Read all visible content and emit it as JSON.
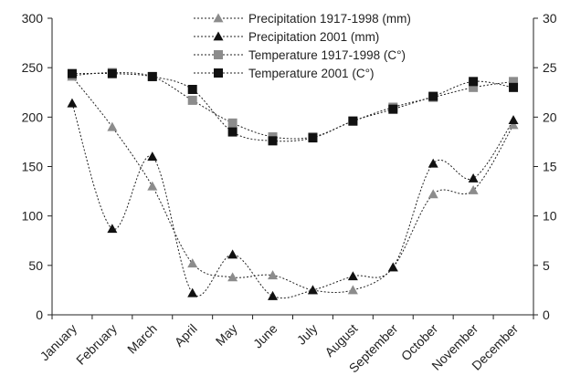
{
  "chart_data": {
    "type": "line",
    "categories": [
      "January",
      "February",
      "March",
      "April",
      "May",
      "June",
      "July",
      "August",
      "September",
      "October",
      "November",
      "December"
    ],
    "y_left": {
      "min": 0,
      "max": 300,
      "ticks": [
        "0",
        "50",
        "100",
        "150",
        "200",
        "250",
        "300"
      ]
    },
    "y_right": {
      "min": 0,
      "max": 30,
      "ticks": [
        "0",
        "5",
        "10",
        "15",
        "20",
        "25",
        "30"
      ]
    },
    "grid": false,
    "legend_position": "top-center",
    "series": [
      {
        "name": "Precipitation 1917-1998 (mm)",
        "axis": "left",
        "marker": "triangle",
        "color": "#8c8c8c",
        "values": [
          241,
          190,
          130,
          52,
          38,
          40,
          25,
          25,
          48,
          122,
          126,
          192
        ]
      },
      {
        "name": "Precipitation 2001 (mm)",
        "axis": "left",
        "marker": "triangle",
        "color": "#111111",
        "values": [
          214,
          87,
          160,
          22,
          61,
          19,
          25,
          39,
          48,
          153,
          138,
          197
        ]
      },
      {
        "name": "Temperature 1917-1998 (C°)",
        "axis": "right",
        "marker": "square",
        "color": "#8c8c8c",
        "values": [
          24.2,
          24.5,
          24.1,
          21.7,
          19.4,
          18.0,
          18.0,
          19.6,
          21.0,
          22.0,
          23.0,
          23.6
        ]
      },
      {
        "name": "Temperature 2001 (C°)",
        "axis": "right",
        "marker": "square",
        "color": "#111111",
        "values": [
          24.4,
          24.4,
          24.1,
          22.8,
          18.5,
          17.6,
          17.9,
          19.6,
          20.8,
          22.1,
          23.6,
          23.0
        ]
      }
    ]
  }
}
